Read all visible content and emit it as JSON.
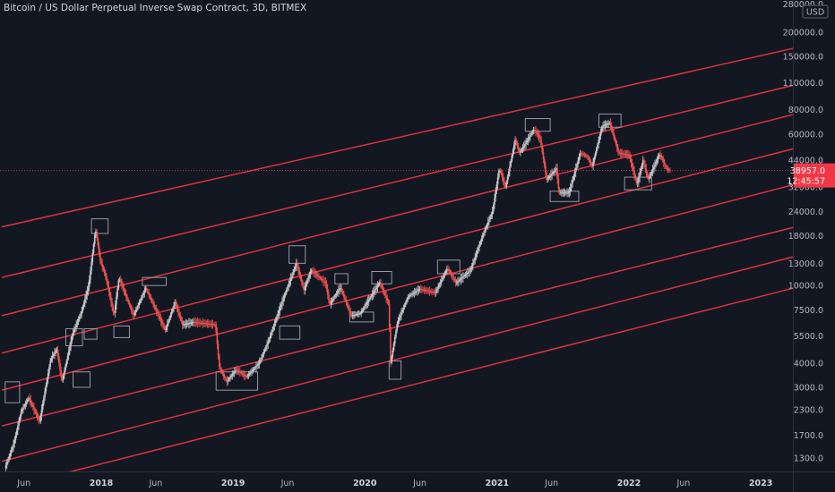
{
  "header": {
    "title": "Bitcoin / US Dollar Perpetual Inverse Swap Contract, 3D, BITMEX"
  },
  "axis": {
    "currency": "USD",
    "top_label": "280000.0",
    "price_tag": "38957.0",
    "countdown": "12:45:57"
  },
  "colors": {
    "background": "#131722",
    "channel_line": "#f23645",
    "up_candle": "#c8c9cc",
    "down_candle": "#ef5350",
    "box": "#9598a1",
    "price_tag_bg": "#f23645"
  },
  "chart_data": {
    "type": "line",
    "title": "Bitcoin / US Dollar Perpetual Inverse Swap Contract, 3D, BITMEX",
    "y_scale": "log",
    "y_ticks": [
      1300,
      1700,
      2300,
      3000,
      4000,
      5500,
      7500,
      10000,
      13000,
      18000,
      24000,
      32000,
      44000,
      60000,
      80000,
      110000,
      150000,
      200000
    ],
    "y_tick_labels": [
      "1300.0",
      "1700.0",
      "2300.0",
      "3000.0",
      "4000.0",
      "5500.0",
      "7500.0",
      "10000.0",
      "13000.0",
      "18000.0",
      "24000.0",
      "32000.0",
      "44000.0",
      "60000.0",
      "80000.0",
      "110000.0",
      "150000.0",
      "200000.0"
    ],
    "x_ticks": [
      {
        "label": "Jun",
        "date": "2017-06-01",
        "bold": false
      },
      {
        "label": "2018",
        "date": "2018-01-01",
        "bold": true
      },
      {
        "label": "Jun",
        "date": "2018-06-01",
        "bold": false
      },
      {
        "label": "2019",
        "date": "2019-01-01",
        "bold": true
      },
      {
        "label": "Jun",
        "date": "2019-06-01",
        "bold": false
      },
      {
        "label": "2020",
        "date": "2020-01-01",
        "bold": true
      },
      {
        "label": "Jun",
        "date": "2020-06-01",
        "bold": false
      },
      {
        "label": "2021",
        "date": "2021-01-01",
        "bold": true
      },
      {
        "label": "Jun",
        "date": "2021-06-01",
        "bold": false
      },
      {
        "label": "2022",
        "date": "2022-01-01",
        "bold": true
      },
      {
        "label": "Jun",
        "date": "2022-06-01",
        "bold": false
      },
      {
        "label": "2023",
        "date": "2023-01-01",
        "bold": true
      }
    ],
    "last_price": 38957,
    "price_series": [
      {
        "date": "2017-04-10",
        "price": 1150
      },
      {
        "date": "2017-05-05",
        "price": 1550
      },
      {
        "date": "2017-05-25",
        "price": 2250
      },
      {
        "date": "2017-06-15",
        "price": 2650
      },
      {
        "date": "2017-07-15",
        "price": 2000
      },
      {
        "date": "2017-08-15",
        "price": 4200
      },
      {
        "date": "2017-09-01",
        "price": 4700
      },
      {
        "date": "2017-09-15",
        "price": 3200
      },
      {
        "date": "2017-10-15",
        "price": 5700
      },
      {
        "date": "2017-11-08",
        "price": 7300
      },
      {
        "date": "2017-11-28",
        "price": 10000
      },
      {
        "date": "2017-12-17",
        "price": 19500
      },
      {
        "date": "2017-12-30",
        "price": 13500
      },
      {
        "date": "2018-01-15",
        "price": 11000
      },
      {
        "date": "2018-02-06",
        "price": 7000
      },
      {
        "date": "2018-02-20",
        "price": 11000
      },
      {
        "date": "2018-04-01",
        "price": 7000
      },
      {
        "date": "2018-05-05",
        "price": 9700
      },
      {
        "date": "2018-06-28",
        "price": 5900
      },
      {
        "date": "2018-07-25",
        "price": 8200
      },
      {
        "date": "2018-08-15",
        "price": 6300
      },
      {
        "date": "2018-09-15",
        "price": 6500
      },
      {
        "date": "2018-11-14",
        "price": 6300
      },
      {
        "date": "2018-11-25",
        "price": 3800
      },
      {
        "date": "2018-12-15",
        "price": 3200
      },
      {
        "date": "2019-01-10",
        "price": 3700
      },
      {
        "date": "2019-02-08",
        "price": 3400
      },
      {
        "date": "2019-03-15",
        "price": 4000
      },
      {
        "date": "2019-04-10",
        "price": 5200
      },
      {
        "date": "2019-05-15",
        "price": 8000
      },
      {
        "date": "2019-06-26",
        "price": 13000
      },
      {
        "date": "2019-07-17",
        "price": 9500
      },
      {
        "date": "2019-08-06",
        "price": 12000
      },
      {
        "date": "2019-09-15",
        "price": 10300
      },
      {
        "date": "2019-09-26",
        "price": 8000
      },
      {
        "date": "2019-10-26",
        "price": 9800
      },
      {
        "date": "2019-11-25",
        "price": 7000
      },
      {
        "date": "2019-12-20",
        "price": 7200
      },
      {
        "date": "2020-02-12",
        "price": 10400
      },
      {
        "date": "2020-03-08",
        "price": 8000
      },
      {
        "date": "2020-03-13",
        "price": 4000
      },
      {
        "date": "2020-04-01",
        "price": 6500
      },
      {
        "date": "2020-05-01",
        "price": 8800
      },
      {
        "date": "2020-06-01",
        "price": 9600
      },
      {
        "date": "2020-07-15",
        "price": 9200
      },
      {
        "date": "2020-08-17",
        "price": 12300
      },
      {
        "date": "2020-09-10",
        "price": 10300
      },
      {
        "date": "2020-10-20",
        "price": 12000
      },
      {
        "date": "2020-11-25",
        "price": 18500
      },
      {
        "date": "2020-12-20",
        "price": 24000
      },
      {
        "date": "2021-01-08",
        "price": 40000
      },
      {
        "date": "2021-01-25",
        "price": 32000
      },
      {
        "date": "2021-02-21",
        "price": 56000
      },
      {
        "date": "2021-03-05",
        "price": 48000
      },
      {
        "date": "2021-04-14",
        "price": 63500
      },
      {
        "date": "2021-05-01",
        "price": 57000
      },
      {
        "date": "2021-05-19",
        "price": 35000
      },
      {
        "date": "2021-06-15",
        "price": 40000
      },
      {
        "date": "2021-06-22",
        "price": 30000
      },
      {
        "date": "2021-07-20",
        "price": 30000
      },
      {
        "date": "2021-08-20",
        "price": 48000
      },
      {
        "date": "2021-09-08",
        "price": 46000
      },
      {
        "date": "2021-09-22",
        "price": 41000
      },
      {
        "date": "2021-10-20",
        "price": 66000
      },
      {
        "date": "2021-11-10",
        "price": 68500
      },
      {
        "date": "2021-12-04",
        "price": 48000
      },
      {
        "date": "2022-01-02",
        "price": 47000
      },
      {
        "date": "2022-01-24",
        "price": 33000
      },
      {
        "date": "2022-02-10",
        "price": 44000
      },
      {
        "date": "2022-02-24",
        "price": 35000
      },
      {
        "date": "2022-03-28",
        "price": 47500
      },
      {
        "date": "2022-04-15",
        "price": 40000
      },
      {
        "date": "2022-04-24",
        "price": 38957
      }
    ],
    "channel_lines": [
      {
        "start": {
          "date": "2017-04-01",
          "price": 20000
        },
        "end": {
          "date": "2023-04-30",
          "price": 170000
        }
      },
      {
        "start": {
          "date": "2017-04-01",
          "price": 11000
        },
        "end": {
          "date": "2023-04-30",
          "price": 110000
        }
      },
      {
        "start": {
          "date": "2017-04-01",
          "price": 7000
        },
        "end": {
          "date": "2023-04-30",
          "price": 78000
        }
      },
      {
        "start": {
          "date": "2017-04-01",
          "price": 4500
        },
        "end": {
          "date": "2023-04-30",
          "price": 52000
        }
      },
      {
        "start": {
          "date": "2017-04-01",
          "price": 2900
        },
        "end": {
          "date": "2023-04-30",
          "price": 34000
        }
      },
      {
        "start": {
          "date": "2017-04-01",
          "price": 1900
        },
        "end": {
          "date": "2023-04-30",
          "price": 20500
        }
      },
      {
        "start": {
          "date": "2017-04-01",
          "price": 1250
        },
        "end": {
          "date": "2023-04-30",
          "price": 14500
        }
      },
      {
        "start": {
          "date": "2017-04-01",
          "price": 900
        },
        "end": {
          "date": "2023-04-30",
          "price": 10000
        }
      }
    ],
    "boxes": [
      {
        "start": "2017-04-10",
        "end": "2017-05-20",
        "low": 2500,
        "high": 3200
      },
      {
        "start": "2017-09-25",
        "end": "2017-11-10",
        "low": 4900,
        "high": 6000
      },
      {
        "start": "2017-10-15",
        "end": "2017-12-01",
        "low": 3000,
        "high": 3600
      },
      {
        "start": "2017-12-05",
        "end": "2018-01-20",
        "low": 18500,
        "high": 22000
      },
      {
        "start": "2017-11-15",
        "end": "2017-12-20",
        "low": 5300,
        "high": 6000
      },
      {
        "start": "2018-02-05",
        "end": "2018-03-20",
        "low": 5400,
        "high": 6200
      },
      {
        "start": "2018-04-25",
        "end": "2018-06-30",
        "low": 10000,
        "high": 11000
      },
      {
        "start": "2018-11-15",
        "end": "2019-03-10",
        "low": 2900,
        "high": 3600
      },
      {
        "start": "2019-05-10",
        "end": "2019-07-05",
        "low": 5300,
        "high": 6200
      },
      {
        "start": "2019-06-05",
        "end": "2019-07-20",
        "low": 13000,
        "high": 16000
      },
      {
        "start": "2019-10-10",
        "end": "2019-11-15",
        "low": 10200,
        "high": 11500
      },
      {
        "start": "2019-11-20",
        "end": "2020-01-25",
        "low": 6500,
        "high": 7300
      },
      {
        "start": "2020-01-20",
        "end": "2020-03-15",
        "low": 10200,
        "high": 11800
      },
      {
        "start": "2020-03-08",
        "end": "2020-04-10",
        "low": 3300,
        "high": 4100
      },
      {
        "start": "2020-07-20",
        "end": "2020-09-20",
        "low": 11500,
        "high": 13500
      },
      {
        "start": "2021-03-20",
        "end": "2021-05-28",
        "low": 62000,
        "high": 72000
      },
      {
        "start": "2021-05-28",
        "end": "2021-08-15",
        "low": 27000,
        "high": 30500
      },
      {
        "start": "2021-10-10",
        "end": "2021-12-10",
        "low": 65000,
        "high": 76000
      },
      {
        "start": "2021-12-20",
        "end": "2022-03-05",
        "low": 31000,
        "high": 36000
      }
    ]
  }
}
